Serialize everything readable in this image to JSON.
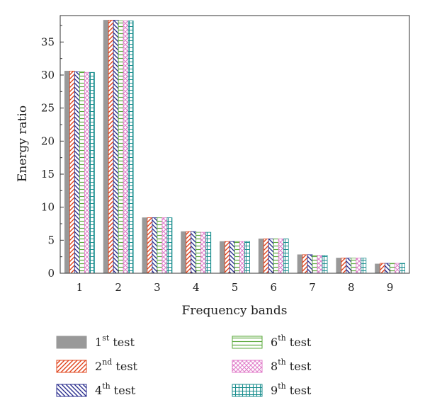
{
  "chart_data": {
    "type": "bar",
    "xlabel": "Frequency bands",
    "ylabel": "Energy ratio",
    "ylim": [
      0,
      39
    ],
    "yticks": [
      0,
      5,
      10,
      15,
      20,
      25,
      30,
      35
    ],
    "categories": [
      "1",
      "2",
      "3",
      "4",
      "5",
      "6",
      "7",
      "8",
      "9"
    ],
    "legend_placement": "bottom",
    "series": [
      {
        "name": "test",
        "ordinal": "1",
        "suffix": "st",
        "pattern": "solid",
        "color": "#999999",
        "values": [
          30.6,
          38.3,
          8.4,
          6.3,
          4.8,
          5.2,
          2.8,
          2.3,
          1.4
        ]
      },
      {
        "name": "test",
        "ordinal": "2",
        "suffix": "nd",
        "pattern": "diag-right",
        "color": "#e0441c",
        "values": [
          30.6,
          38.3,
          8.4,
          6.3,
          4.8,
          5.2,
          2.8,
          2.3,
          1.5
        ]
      },
      {
        "name": "test",
        "ordinal": "4",
        "suffix": "th",
        "pattern": "diag-left",
        "color": "#2b2f8f",
        "values": [
          30.5,
          38.3,
          8.4,
          6.3,
          4.8,
          5.2,
          2.8,
          2.3,
          1.5
        ]
      },
      {
        "name": "test",
        "ordinal": "6",
        "suffix": "th",
        "pattern": "horizontal",
        "color": "#5aa83a",
        "values": [
          30.5,
          38.2,
          8.4,
          6.2,
          4.8,
          5.2,
          2.7,
          2.3,
          1.5
        ]
      },
      {
        "name": "test",
        "ordinal": "8",
        "suffix": "th",
        "pattern": "crosshatch",
        "color": "#e07ac8",
        "values": [
          30.4,
          38.2,
          8.4,
          6.2,
          4.8,
          5.2,
          2.7,
          2.3,
          1.5
        ]
      },
      {
        "name": "test",
        "ordinal": "9",
        "suffix": "th",
        "pattern": "grid",
        "color": "#1a8e8e",
        "values": [
          30.4,
          38.2,
          8.4,
          6.2,
          4.8,
          5.2,
          2.7,
          2.3,
          1.5
        ]
      }
    ]
  }
}
